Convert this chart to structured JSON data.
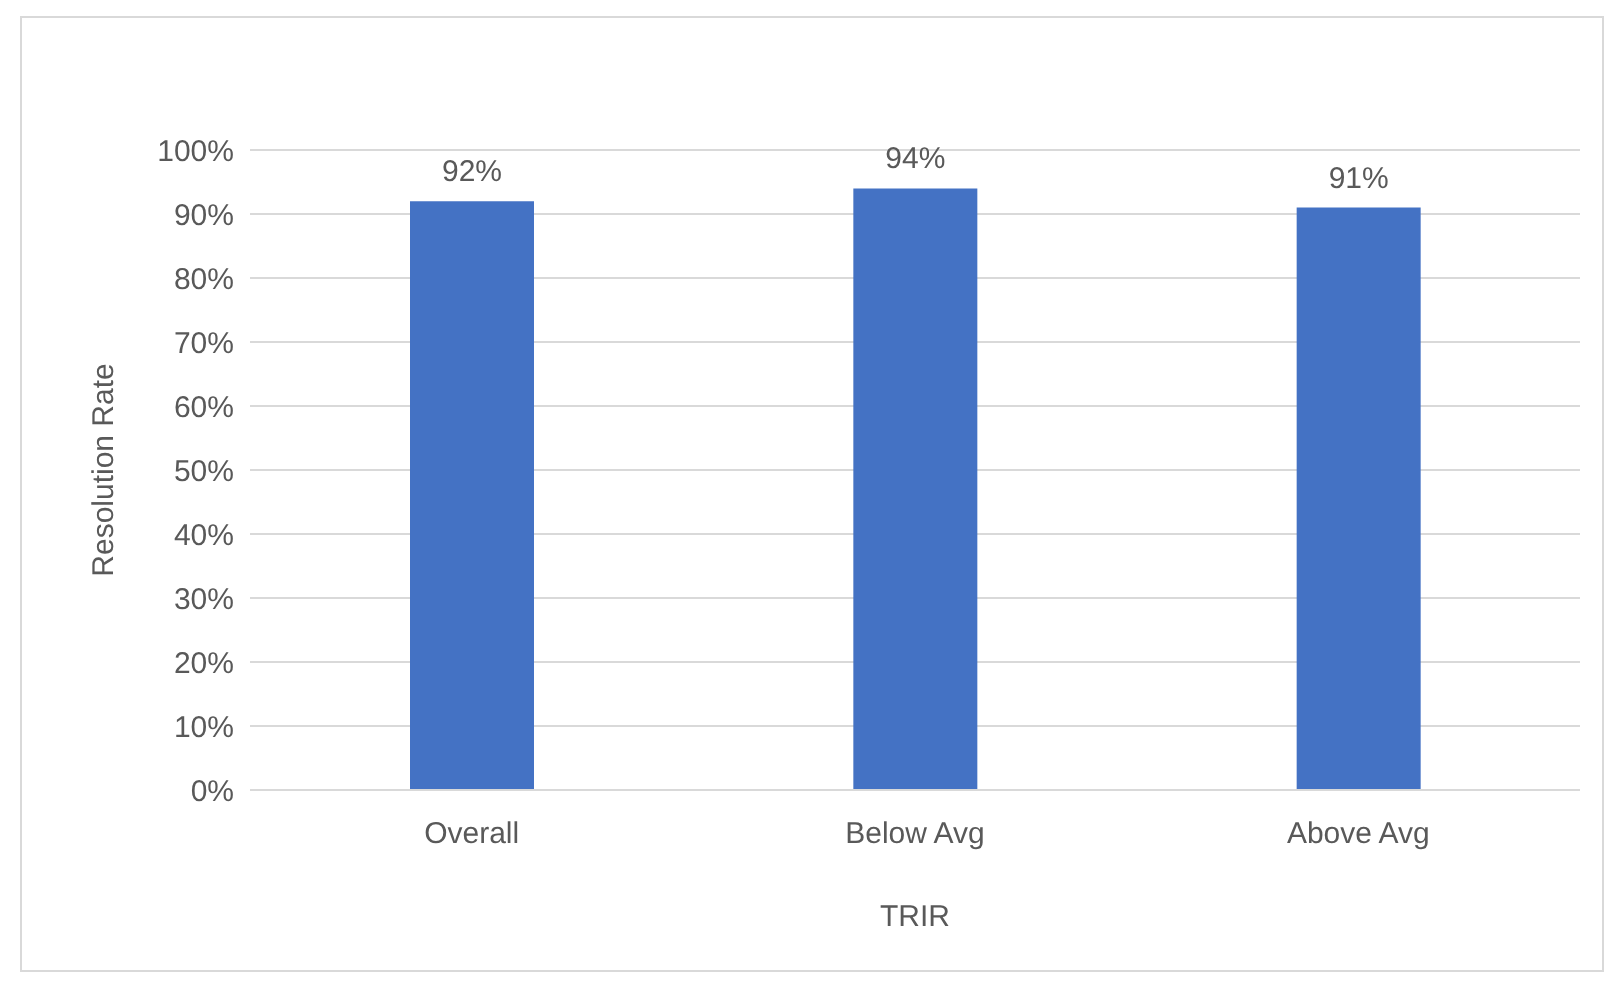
{
  "chart_data": {
    "type": "bar",
    "xlabel": "TRIR",
    "ylabel": "Resolution Rate",
    "categories": [
      "Overall",
      "Below Avg",
      "Above Avg"
    ],
    "values": [
      92,
      94,
      91
    ],
    "value_labels": [
      "92%",
      "94%",
      "91%"
    ],
    "color": "#4472c4",
    "ylim": [
      0,
      100
    ],
    "yticks": [
      {
        "value": 0,
        "label": "0%"
      },
      {
        "value": 10,
        "label": "10%"
      },
      {
        "value": 20,
        "label": "20%"
      },
      {
        "value": 30,
        "label": "30%"
      },
      {
        "value": 40,
        "label": "40%"
      },
      {
        "value": 50,
        "label": "50%"
      },
      {
        "value": 60,
        "label": "60%"
      },
      {
        "value": 70,
        "label": "70%"
      },
      {
        "value": 80,
        "label": "80%"
      },
      {
        "value": 90,
        "label": "90%"
      },
      {
        "value": 100,
        "label": "100%"
      }
    ],
    "grid": "y",
    "legend": false
  }
}
